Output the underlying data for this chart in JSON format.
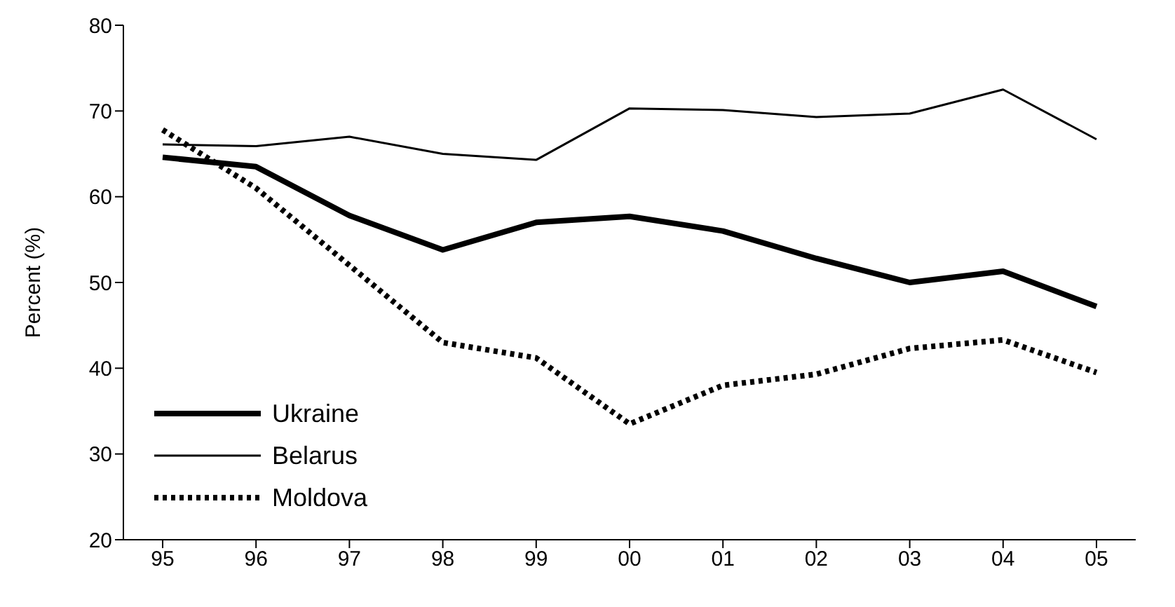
{
  "chart_data": {
    "type": "line",
    "ylabel": "Percent (%)",
    "categories": [
      "95",
      "96",
      "97",
      "98",
      "99",
      "00",
      "01",
      "02",
      "03",
      "04",
      "05"
    ],
    "ylim": [
      20,
      80
    ],
    "yticks": [
      20,
      30,
      40,
      50,
      60,
      70,
      80
    ],
    "grid": false,
    "legend": "bottom left",
    "marker": "none",
    "series": [
      {
        "name": "Ukraine",
        "color": "#000000",
        "line_style": "solid",
        "values": [
          64.6,
          63.5,
          57.8,
          53.8,
          57,
          57.7,
          56,
          52.8,
          50,
          51.3,
          47.2
        ]
      },
      {
        "name": "Belarus",
        "color": "#000000",
        "line_style": "solid",
        "values": [
          66.1,
          65.9,
          67,
          65,
          64.3,
          70.3,
          70.1,
          69.3,
          69.7,
          72.5,
          66.7
        ]
      },
      {
        "name": "Moldova",
        "color": "#000000",
        "line_style": "dotted",
        "values": [
          67.8,
          61,
          52,
          43,
          41.2,
          33.5,
          38,
          39.3,
          42.3,
          43.3,
          39.5
        ]
      }
    ]
  }
}
